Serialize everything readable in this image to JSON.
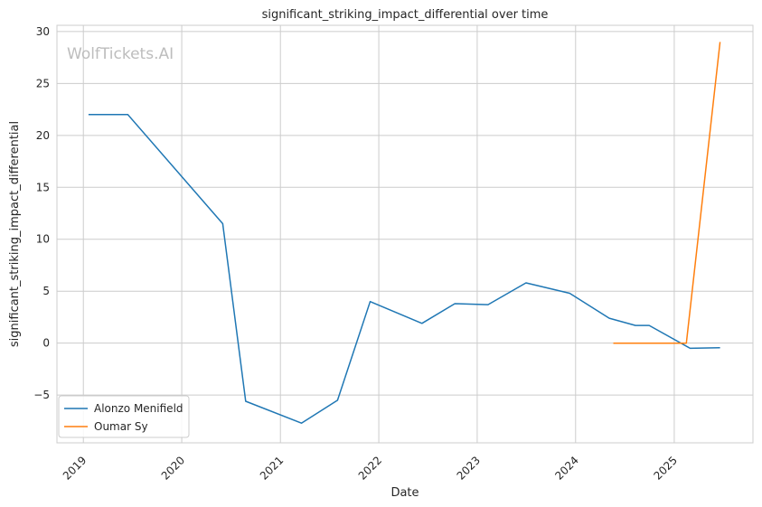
{
  "chart_data": {
    "type": "line",
    "title": "significant_striking_impact_differential over time",
    "xlabel": "Date",
    "ylabel": "significant_striking_impact_differential",
    "watermark": "WolfTickets.AI",
    "x_ticks": [
      "2019",
      "2020",
      "2021",
      "2022",
      "2023",
      "2024",
      "2025"
    ],
    "y_ticks": [
      -5,
      0,
      5,
      10,
      15,
      20,
      25,
      30
    ],
    "y_tick_labels": [
      "−5",
      "0",
      "5",
      "10",
      "15",
      "20",
      "25",
      "30"
    ],
    "xlim": [
      "2018-09-25",
      "2025-10-20"
    ],
    "ylim": [
      -9.6,
      30.6
    ],
    "grid": true,
    "legend_position": "lower-left",
    "series": [
      {
        "name": "Alonzo Menifield",
        "color": "#1f77b4",
        "points": [
          [
            "2019-01-20",
            22.0
          ],
          [
            "2019-06-15",
            22.0
          ],
          [
            "2020-06-01",
            11.5
          ],
          [
            "2020-08-25",
            -5.6
          ],
          [
            "2021-03-20",
            -7.7
          ],
          [
            "2021-08-01",
            -5.5
          ],
          [
            "2021-11-30",
            4.0
          ],
          [
            "2022-06-10",
            1.9
          ],
          [
            "2022-10-10",
            3.8
          ],
          [
            "2023-02-10",
            3.7
          ],
          [
            "2023-07-01",
            5.8
          ],
          [
            "2023-12-10",
            4.8
          ],
          [
            "2024-05-05",
            2.4
          ],
          [
            "2024-08-10",
            1.7
          ],
          [
            "2024-09-30",
            1.7
          ],
          [
            "2025-03-01",
            -0.5
          ],
          [
            "2025-06-20",
            -0.45
          ]
        ]
      },
      {
        "name": "Oumar Sy",
        "color": "#ff7f0e",
        "points": [
          [
            "2024-05-20",
            0.0
          ],
          [
            "2025-02-15",
            0.0
          ],
          [
            "2025-06-20",
            29.0
          ]
        ]
      }
    ]
  }
}
